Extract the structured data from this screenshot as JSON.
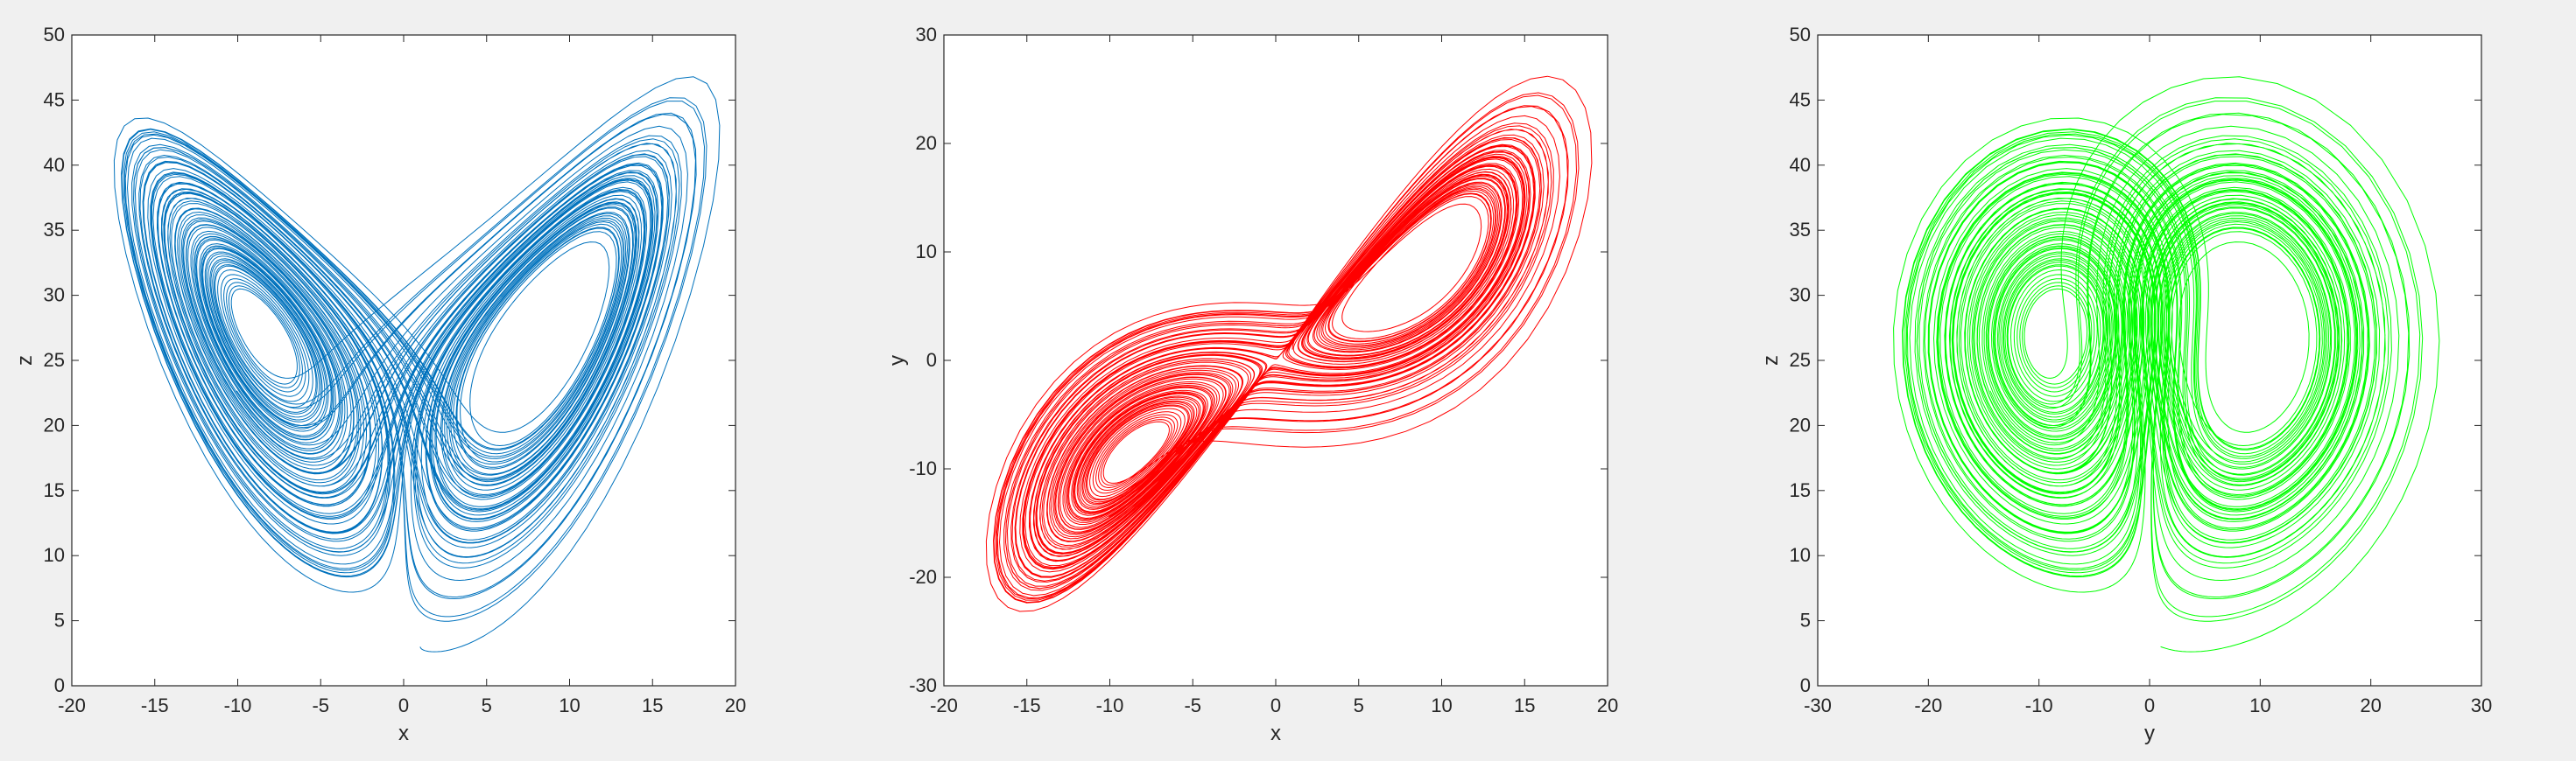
{
  "figure": {
    "background": "#f0f0f0",
    "axes_background": "#ffffff",
    "axis_color": "#262626"
  },
  "chart_data": [
    {
      "type": "line",
      "title": "",
      "xlabel": "x",
      "ylabel": "z",
      "xlim": [
        -20,
        20
      ],
      "ylim": [
        0,
        50
      ],
      "xticks": [
        -20,
        -15,
        -10,
        -5,
        0,
        5,
        10,
        15,
        20
      ],
      "yticks": [
        0,
        5,
        10,
        15,
        20,
        25,
        30,
        35,
        40,
        45,
        50
      ],
      "grid": false,
      "series": [
        {
          "color": "#0072bd",
          "description": "Lorenz attractor projection: x vs z (butterfly shape, lobes centred near (-8.5, 27) and (8.5, 27))"
        }
      ]
    },
    {
      "type": "line",
      "title": "",
      "xlabel": "x",
      "ylabel": "y",
      "xlim": [
        -20,
        20
      ],
      "ylim": [
        -30,
        30
      ],
      "xticks": [
        -20,
        -15,
        -10,
        -5,
        0,
        5,
        10,
        15,
        20
      ],
      "yticks": [
        -30,
        -20,
        -10,
        0,
        10,
        20,
        30
      ],
      "grid": false,
      "series": [
        {
          "color": "#ff0000",
          "description": "Lorenz attractor projection: x vs y (diagonal figure-eight, lobes near (-8.5, -8.5) and (8.5, 8.5))"
        }
      ]
    },
    {
      "type": "line",
      "title": "",
      "xlabel": "y",
      "ylabel": "z",
      "xlim": [
        -30,
        30
      ],
      "ylim": [
        0,
        50
      ],
      "xticks": [
        -30,
        -20,
        -10,
        0,
        10,
        20,
        30
      ],
      "yticks": [
        0,
        5,
        10,
        15,
        20,
        25,
        30,
        35,
        40,
        45,
        50
      ],
      "grid": false,
      "series": [
        {
          "color": "#00ff00",
          "description": "Lorenz attractor projection: y vs z (two overlapping lobes near (-8.5, 27) and (8.5, 27))"
        }
      ]
    }
  ]
}
